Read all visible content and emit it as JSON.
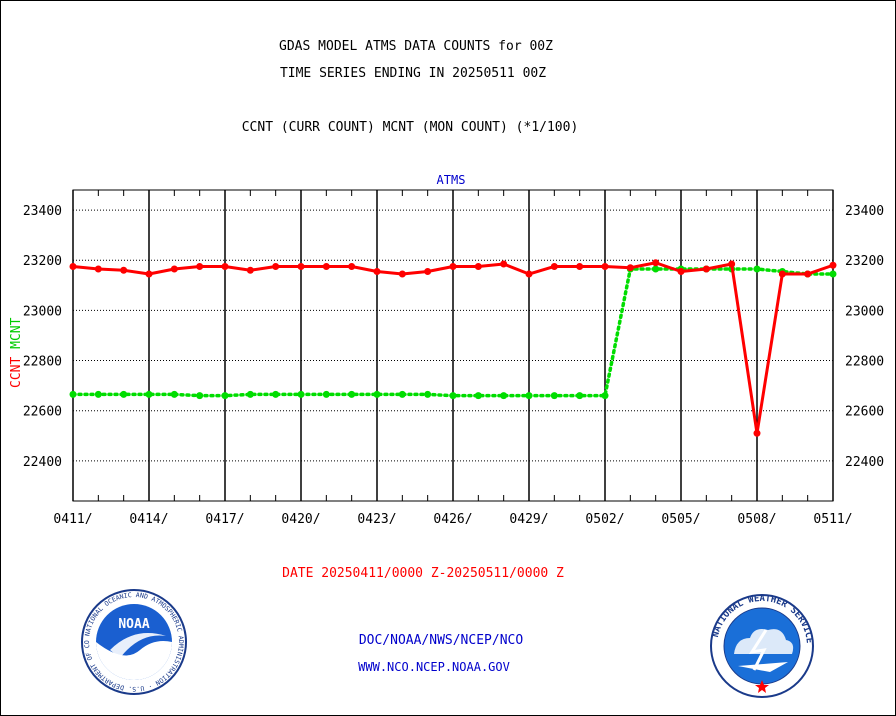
{
  "titles": {
    "line1": "GDAS MODEL ATMS DATA COUNTS for 00Z",
    "line2": "TIME SERIES ENDING IN 20250511 00Z",
    "subtitle": "CCNT (CURR COUNT) MCNT (MON COUNT) (*1/100)",
    "series_title": "ATMS",
    "date_range": "DATE 20250411/0000 Z-20250511/0000 Z"
  },
  "credits": {
    "line1": "DOC/NOAA/NWS/NCEP/NCO",
    "line2": "WWW.NCO.NCEP.NOAA.GOV"
  },
  "logos": {
    "noaa": {
      "name": "noaa-logo",
      "text": "NOAA",
      "ring_text": "NATIONAL OCEANIC AND ATMOSPHERIC ADMINISTRATION · U.S. DEPARTMENT OF COMMERCE"
    },
    "nws": {
      "name": "nws-logo",
      "ring_text": "NATIONAL WEATHER SERVICE"
    }
  },
  "chart_data": {
    "type": "line",
    "title": "ATMS",
    "ylabel_parts": [
      {
        "text": "CCNT",
        "color": "#ff0000"
      },
      {
        "text": "MCNT",
        "color": "#00cc00"
      }
    ],
    "x_tick_labels": [
      "0411/",
      "0414/",
      "0417/",
      "0420/",
      "0423/",
      "0426/",
      "0429/",
      "0502/",
      "0505/",
      "0508/",
      "0511/"
    ],
    "x_start_date": "2025-04-11",
    "x_end_date": "2025-05-11",
    "x_tick_step_days": 3,
    "ylim": [
      22240,
      23480
    ],
    "y_ticks": [
      22400,
      22600,
      22800,
      23000,
      23200,
      23400
    ],
    "grid": true,
    "series": [
      {
        "name": "CCNT",
        "color": "#ff0000",
        "style": "solid",
        "dates": [
          "2025-04-11",
          "2025-04-12",
          "2025-04-13",
          "2025-04-14",
          "2025-04-15",
          "2025-04-16",
          "2025-04-17",
          "2025-04-18",
          "2025-04-19",
          "2025-04-20",
          "2025-04-21",
          "2025-04-22",
          "2025-04-23",
          "2025-04-24",
          "2025-04-25",
          "2025-04-26",
          "2025-04-27",
          "2025-04-28",
          "2025-04-29",
          "2025-04-30",
          "2025-05-01",
          "2025-05-02",
          "2025-05-03",
          "2025-05-04",
          "2025-05-05",
          "2025-05-06",
          "2025-05-07",
          "2025-05-08",
          "2025-05-09",
          "2025-05-10",
          "2025-05-11"
        ],
        "values": [
          23175,
          23165,
          23160,
          23145,
          23165,
          23175,
          23175,
          23160,
          23175,
          23175,
          23175,
          23175,
          23155,
          23145,
          23155,
          23175,
          23175,
          23185,
          23145,
          23175,
          23175,
          23175,
          23170,
          23190,
          23155,
          23165,
          23185,
          22510,
          23145,
          23145,
          23180
        ]
      },
      {
        "name": "MCNT",
        "color": "#00dd00",
        "style": "dotted",
        "dates": [
          "2025-04-11",
          "2025-04-12",
          "2025-04-13",
          "2025-04-14",
          "2025-04-15",
          "2025-04-16",
          "2025-04-17",
          "2025-04-18",
          "2025-04-19",
          "2025-04-20",
          "2025-04-21",
          "2025-04-22",
          "2025-04-23",
          "2025-04-24",
          "2025-04-25",
          "2025-04-26",
          "2025-04-27",
          "2025-04-28",
          "2025-04-29",
          "2025-04-30",
          "2025-05-01",
          "2025-05-02",
          "2025-05-03",
          "2025-05-04",
          "2025-05-05",
          "2025-05-06",
          "2025-05-07",
          "2025-05-08",
          "2025-05-09",
          "2025-05-10",
          "2025-05-11"
        ],
        "values": [
          22665,
          22665,
          22665,
          22665,
          22665,
          22660,
          22660,
          22665,
          22665,
          22665,
          22665,
          22665,
          22665,
          22665,
          22665,
          22660,
          22660,
          22660,
          22660,
          22660,
          22660,
          22660,
          23165,
          23165,
          23165,
          23165,
          23165,
          23165,
          23155,
          23145,
          23145
        ]
      }
    ]
  }
}
